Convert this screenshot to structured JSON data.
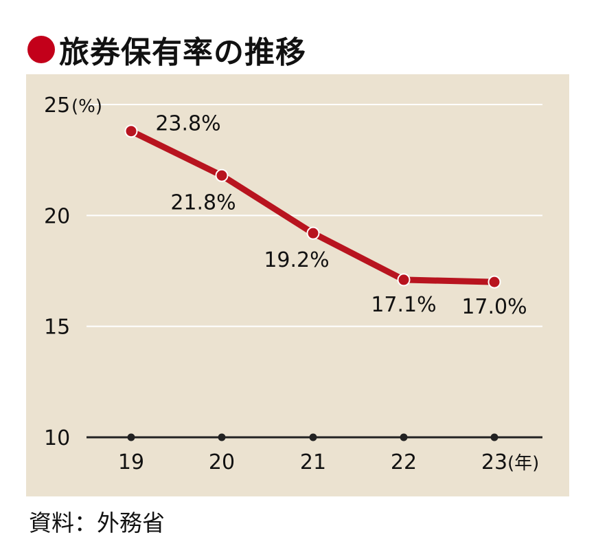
{
  "title": "旅券保有率の推移",
  "source": "資料：外務省",
  "colors": {
    "line": "#b8141f",
    "background": "#ebe2d0",
    "grid": "#ffffff",
    "axis": "#222222",
    "bullet": "#c3001a"
  },
  "chart_data": {
    "type": "line",
    "title": "旅券保有率の推移",
    "ylabel": "(%)",
    "xlabel": "(年)",
    "x": [
      "19",
      "20",
      "21",
      "22",
      "23"
    ],
    "ylim": [
      10,
      25
    ],
    "yticks": [
      "10",
      "15",
      "20",
      "25"
    ],
    "grid": true,
    "series": [
      {
        "values": [
          23.8,
          21.8,
          19.2,
          17.1,
          17.0
        ],
        "labels": [
          "23.8%",
          "21.8%",
          "19.2%",
          "17.1%",
          "17.0%"
        ]
      }
    ]
  }
}
